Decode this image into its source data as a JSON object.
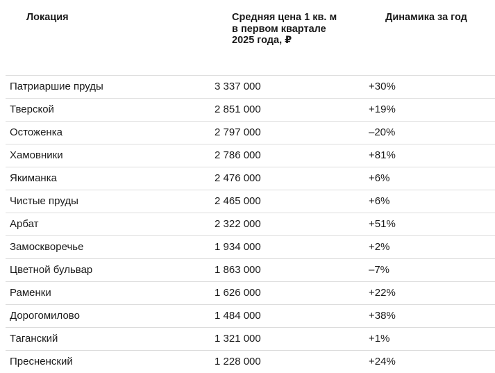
{
  "table": {
    "headers": {
      "location": "Локация",
      "price": "Средняя цена 1 кв. м в первом квартале 2025 года, ₽",
      "dynamics": "Динамика за год"
    },
    "rows": [
      {
        "location": "Патриаршие пруды",
        "price": "3 337 000",
        "dynamics": "+30%"
      },
      {
        "location": "Тверской",
        "price": "2 851 000",
        "dynamics": "+19%"
      },
      {
        "location": "Остоженка",
        "price": "2 797 000",
        "dynamics": "–20%"
      },
      {
        "location": "Хамовники",
        "price": "2 786 000",
        "dynamics": "+81%"
      },
      {
        "location": "Якиманка",
        "price": "2 476 000",
        "dynamics": "+6%"
      },
      {
        "location": "Чистые пруды",
        "price": "2 465 000",
        "dynamics": "+6%"
      },
      {
        "location": "Арбат",
        "price": "2 322 000",
        "dynamics": "+51%"
      },
      {
        "location": "Замоскворечье",
        "price": "1 934 000",
        "dynamics": "+2%"
      },
      {
        "location": "Цветной бульвар",
        "price": "1 863 000",
        "dynamics": "–7%"
      },
      {
        "location": "Раменки",
        "price": "1 626 000",
        "dynamics": "+22%"
      },
      {
        "location": "Дорогомилово",
        "price": "1 484 000",
        "dynamics": "+38%"
      },
      {
        "location": "Таганский",
        "price": "1 321 000",
        "dynamics": "+1%"
      },
      {
        "location": "Пресненский",
        "price": "1 228 000",
        "dynamics": "+24%"
      }
    ]
  }
}
